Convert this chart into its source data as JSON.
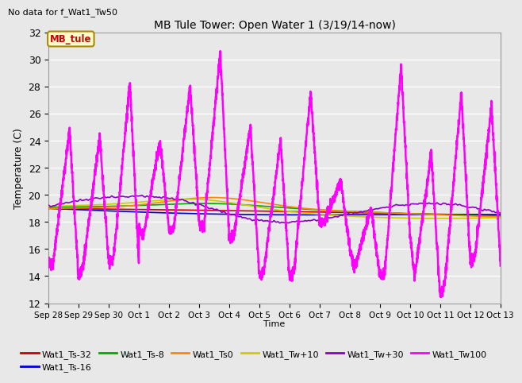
{
  "title": "MB Tule Tower: Open Water 1 (3/19/14-now)",
  "subtitle": "No data for f_Wat1_Tw50",
  "xlabel": "Time",
  "ylabel": "Temperature (C)",
  "ylim": [
    12,
    32
  ],
  "bg_color": "#e8e8e8",
  "plot_bg_color": "#e8e8e8",
  "grid_color": "#ffffff",
  "series": {
    "Wat1_Ts-32": {
      "color": "#cc0000",
      "lw": 1.2
    },
    "Wat1_Ts-16": {
      "color": "#0000cc",
      "lw": 1.2
    },
    "Wat1_Ts-8": {
      "color": "#00aa00",
      "lw": 1.2
    },
    "Wat1_Ts0": {
      "color": "#ff8800",
      "lw": 1.2
    },
    "Wat1_Tw+10": {
      "color": "#cccc00",
      "lw": 1.2
    },
    "Wat1_Tw+30": {
      "color": "#8800cc",
      "lw": 1.2
    },
    "Wat1_Tw100": {
      "color": "#ff00ff",
      "lw": 1.8
    }
  },
  "x_tick_labels": [
    "Sep 28",
    "Sep 29",
    "Sep 30",
    "Oct 1",
    "Oct 2",
    "Oct 3",
    "Oct 4",
    "Oct 5",
    "Oct 6",
    "Oct 7",
    "Oct 8",
    "Oct 9",
    "Oct 10",
    "Oct 11",
    "Oct 12",
    "Oct 13"
  ],
  "yticks": [
    12,
    14,
    16,
    18,
    20,
    22,
    24,
    26,
    28,
    30,
    32
  ],
  "annotation_box": {
    "text": "MB_tule",
    "facecolor": "#ffffcc",
    "edgecolor": "#aa8800",
    "textcolor": "#cc0000"
  }
}
